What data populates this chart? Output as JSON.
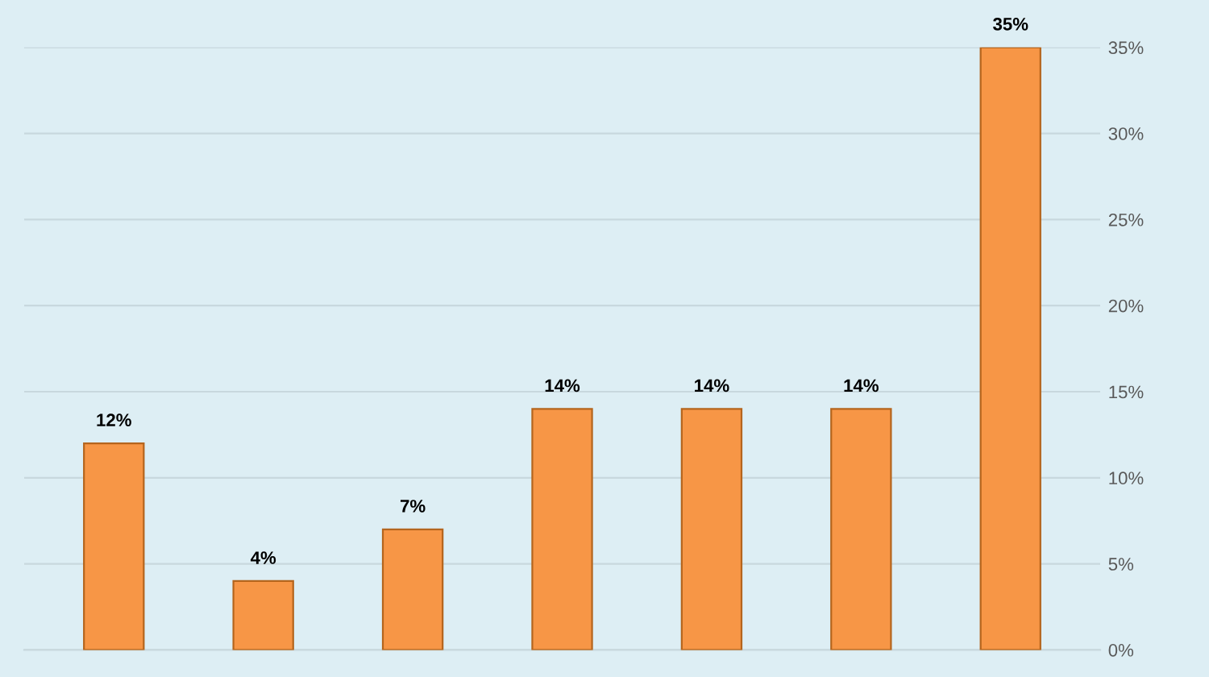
{
  "chart_data": {
    "type": "bar",
    "categories": [
      null,
      null,
      null,
      null,
      null,
      null,
      null
    ],
    "values": [
      12,
      4,
      7,
      14,
      14,
      14,
      35
    ],
    "value_labels": [
      "12%",
      "4%",
      "7%",
      "14%",
      "14%",
      "14%",
      "35%"
    ],
    "color": "#f79646",
    "ylim": [
      0,
      35
    ],
    "yticks": [
      {
        "value": 0,
        "label": "0%"
      },
      {
        "value": 5,
        "label": "5%"
      },
      {
        "value": 10,
        "label": "10%"
      },
      {
        "value": 15,
        "label": "15%"
      },
      {
        "value": 20,
        "label": "20%"
      },
      {
        "value": 25,
        "label": "25%"
      },
      {
        "value": 30,
        "label": "30%"
      },
      {
        "value": 35,
        "label": "35%"
      }
    ],
    "grid": "y"
  }
}
